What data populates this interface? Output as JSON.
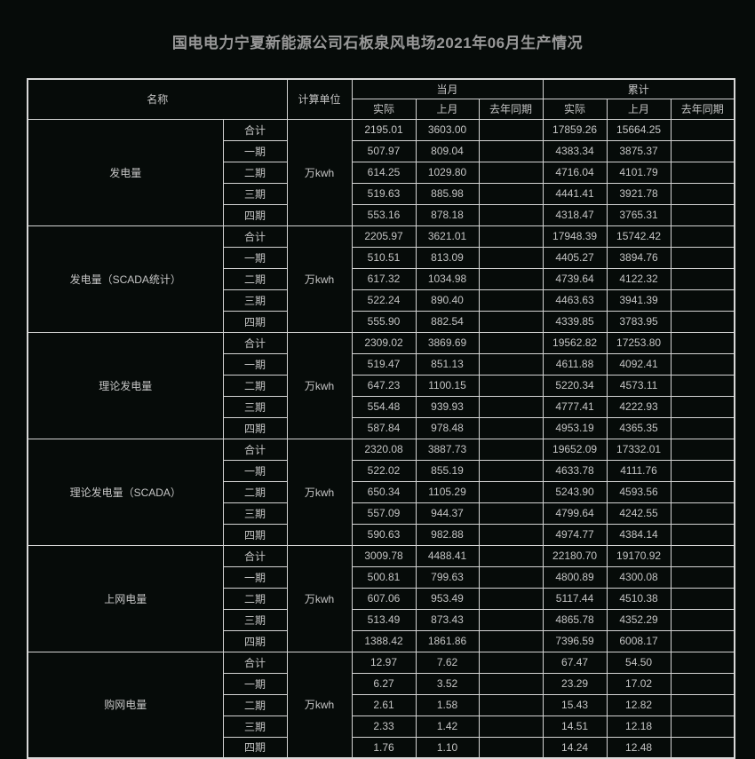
{
  "title": "国电电力宁夏新能源公司石板泉风电场2021年06月生产情况",
  "colors": {
    "background": "#060b09",
    "border": "#d4d4d4",
    "text": "#c5c5c5",
    "title_text": "#989898"
  },
  "table": {
    "header": {
      "name": "名称",
      "unit": "计算单位",
      "current_month": "当月",
      "cumulative": "累计",
      "sub": [
        "实际",
        "上月",
        "去年同期"
      ]
    },
    "sections": [
      {
        "name": "发电量",
        "unit": "万kwh",
        "rows": [
          {
            "label": "合计",
            "values": [
              "2195.01",
              "3603.00",
              "",
              "17859.26",
              "15664.25",
              ""
            ]
          },
          {
            "label": "一期",
            "values": [
              "507.97",
              "809.04",
              "",
              "4383.34",
              "3875.37",
              ""
            ]
          },
          {
            "label": "二期",
            "values": [
              "614.25",
              "1029.80",
              "",
              "4716.04",
              "4101.79",
              ""
            ]
          },
          {
            "label": "三期",
            "values": [
              "519.63",
              "885.98",
              "",
              "4441.41",
              "3921.78",
              ""
            ]
          },
          {
            "label": "四期",
            "values": [
              "553.16",
              "878.18",
              "",
              "4318.47",
              "3765.31",
              ""
            ]
          }
        ]
      },
      {
        "name": "发电量（SCADA统计）",
        "unit": "万kwh",
        "rows": [
          {
            "label": "合计",
            "values": [
              "2205.97",
              "3621.01",
              "",
              "17948.39",
              "15742.42",
              ""
            ]
          },
          {
            "label": "一期",
            "values": [
              "510.51",
              "813.09",
              "",
              "4405.27",
              "3894.76",
              ""
            ]
          },
          {
            "label": "二期",
            "values": [
              "617.32",
              "1034.98",
              "",
              "4739.64",
              "4122.32",
              ""
            ]
          },
          {
            "label": "三期",
            "values": [
              "522.24",
              "890.40",
              "",
              "4463.63",
              "3941.39",
              ""
            ]
          },
          {
            "label": "四期",
            "values": [
              "555.90",
              "882.54",
              "",
              "4339.85",
              "3783.95",
              ""
            ]
          }
        ]
      },
      {
        "name": "理论发电量",
        "unit": "万kwh",
        "rows": [
          {
            "label": "合计",
            "values": [
              "2309.02",
              "3869.69",
              "",
              "19562.82",
              "17253.80",
              ""
            ]
          },
          {
            "label": "一期",
            "values": [
              "519.47",
              "851.13",
              "",
              "4611.88",
              "4092.41",
              ""
            ]
          },
          {
            "label": "二期",
            "values": [
              "647.23",
              "1100.15",
              "",
              "5220.34",
              "4573.11",
              ""
            ]
          },
          {
            "label": "三期",
            "values": [
              "554.48",
              "939.93",
              "",
              "4777.41",
              "4222.93",
              ""
            ]
          },
          {
            "label": "四期",
            "values": [
              "587.84",
              "978.48",
              "",
              "4953.19",
              "4365.35",
              ""
            ]
          }
        ]
      },
      {
        "name": "理论发电量（SCADA）",
        "unit": "万kwh",
        "rows": [
          {
            "label": "合计",
            "values": [
              "2320.08",
              "3887.73",
              "",
              "19652.09",
              "17332.01",
              ""
            ]
          },
          {
            "label": "一期",
            "values": [
              "522.02",
              "855.19",
              "",
              "4633.78",
              "4111.76",
              ""
            ]
          },
          {
            "label": "二期",
            "values": [
              "650.34",
              "1105.29",
              "",
              "5243.90",
              "4593.56",
              ""
            ]
          },
          {
            "label": "三期",
            "values": [
              "557.09",
              "944.37",
              "",
              "4799.64",
              "4242.55",
              ""
            ]
          },
          {
            "label": "四期",
            "values": [
              "590.63",
              "982.88",
              "",
              "4974.77",
              "4384.14",
              ""
            ]
          }
        ]
      },
      {
        "name": "上网电量",
        "unit": "万kwh",
        "rows": [
          {
            "label": "合计",
            "values": [
              "3009.78",
              "4488.41",
              "",
              "22180.70",
              "19170.92",
              ""
            ]
          },
          {
            "label": "一期",
            "values": [
              "500.81",
              "799.63",
              "",
              "4800.89",
              "4300.08",
              ""
            ]
          },
          {
            "label": "二期",
            "values": [
              "607.06",
              "953.49",
              "",
              "5117.44",
              "4510.38",
              ""
            ]
          },
          {
            "label": "三期",
            "values": [
              "513.49",
              "873.43",
              "",
              "4865.78",
              "4352.29",
              ""
            ]
          },
          {
            "label": "四期",
            "values": [
              "1388.42",
              "1861.86",
              "",
              "7396.59",
              "6008.17",
              ""
            ]
          }
        ]
      },
      {
        "name": "购网电量",
        "unit": "万kwh",
        "rows": [
          {
            "label": "合计",
            "values": [
              "12.97",
              "7.62",
              "",
              "67.47",
              "54.50",
              ""
            ]
          },
          {
            "label": "一期",
            "values": [
              "6.27",
              "3.52",
              "",
              "23.29",
              "17.02",
              ""
            ]
          },
          {
            "label": "二期",
            "values": [
              "2.61",
              "1.58",
              "",
              "15.43",
              "12.82",
              ""
            ]
          },
          {
            "label": "三期",
            "values": [
              "2.33",
              "1.42",
              "",
              "14.51",
              "12.18",
              ""
            ]
          },
          {
            "label": "四期",
            "values": [
              "1.76",
              "1.10",
              "",
              "14.24",
              "12.48",
              ""
            ]
          }
        ]
      }
    ]
  }
}
